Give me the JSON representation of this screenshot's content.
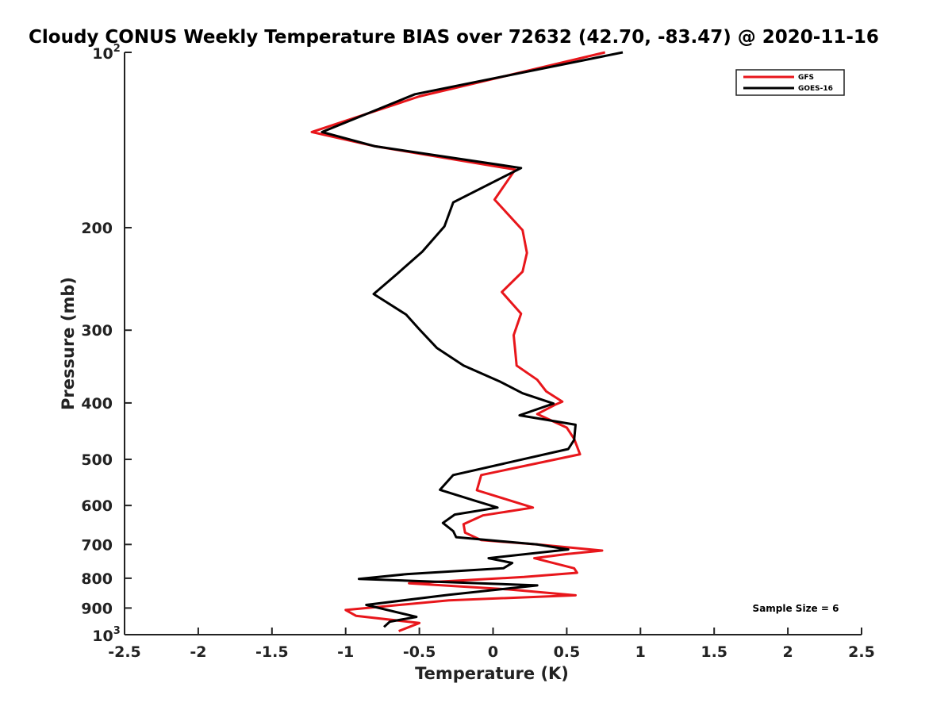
{
  "chart_data": {
    "type": "line",
    "title": "Cloudy CONUS Weekly Temperature BIAS over 72632 (42.70, -83.47) @ 2020-11-16",
    "xlabel": "Temperature (K)",
    "ylabel": "Pressure (mb)",
    "xlim": [
      -2.5,
      2.5
    ],
    "ylim": [
      100,
      1000
    ],
    "y_scale": "log",
    "y_reversed": true,
    "x_ticks": [
      "-2.5",
      "-2",
      "-1.5",
      "-1",
      "-0.5",
      "0",
      "0.5",
      "1",
      "1.5",
      "2",
      "2.5"
    ],
    "y_ticks": [
      {
        "value": 100,
        "base": "10",
        "exp": "2"
      },
      {
        "value": 200,
        "label": "200"
      },
      {
        "value": 300,
        "label": "300"
      },
      {
        "value": 400,
        "label": "400"
      },
      {
        "value": 500,
        "label": "500"
      },
      {
        "value": 600,
        "label": "600"
      },
      {
        "value": 700,
        "label": "700"
      },
      {
        "value": 800,
        "label": "800"
      },
      {
        "value": 900,
        "label": "900"
      },
      {
        "value": 1000,
        "base": "10",
        "exp": "3"
      }
    ],
    "legend_position": "top-right",
    "annotation": "Sample Size = 6",
    "series": [
      {
        "name": "GFS",
        "color": "#e8161b",
        "points": [
          [
            0.76,
            100
          ],
          [
            -0.5,
            119
          ],
          [
            -1.23,
            137
          ],
          [
            -0.8,
            145
          ],
          [
            0.15,
            159
          ],
          [
            0.01,
            179
          ],
          [
            0.2,
            202
          ],
          [
            0.23,
            221
          ],
          [
            0.2,
            238
          ],
          [
            0.06,
            258
          ],
          [
            0.19,
            281
          ],
          [
            0.14,
            306
          ],
          [
            0.15,
            325
          ],
          [
            0.16,
            345
          ],
          [
            0.3,
            365
          ],
          [
            0.36,
            382
          ],
          [
            0.47,
            398
          ],
          [
            0.42,
            403
          ],
          [
            0.3,
            418
          ],
          [
            0.5,
            441
          ],
          [
            0.55,
            461
          ],
          [
            0.59,
            490
          ],
          [
            -0.08,
            532
          ],
          [
            -0.11,
            565
          ],
          [
            0.14,
            591
          ],
          [
            0.27,
            605
          ],
          [
            -0.07,
            624
          ],
          [
            -0.2,
            646
          ],
          [
            -0.19,
            668
          ],
          [
            -0.08,
            688
          ],
          [
            0.3,
            700
          ],
          [
            0.74,
            717
          ],
          [
            0.5,
            727
          ],
          [
            0.28,
            739
          ],
          [
            0.55,
            769
          ],
          [
            0.57,
            783
          ],
          [
            0.21,
            796
          ],
          [
            -0.57,
            816
          ],
          [
            0.1,
            836
          ],
          [
            0.56,
            856
          ],
          [
            -0.3,
            873
          ],
          [
            -1.0,
            907
          ],
          [
            -0.93,
            928
          ],
          [
            -0.5,
            955
          ],
          [
            -0.64,
            986
          ]
        ]
      },
      {
        "name": "GOES-16",
        "color": "#000000",
        "points": [
          [
            0.88,
            100
          ],
          [
            -0.53,
            118
          ],
          [
            -1.16,
            137
          ],
          [
            -0.8,
            145
          ],
          [
            0.19,
            158
          ],
          [
            -0.27,
            181
          ],
          [
            -0.33,
            199
          ],
          [
            -0.48,
            220
          ],
          [
            -0.65,
            240
          ],
          [
            -0.81,
            260
          ],
          [
            -0.59,
            282
          ],
          [
            -0.5,
            299
          ],
          [
            -0.38,
            322
          ],
          [
            -0.2,
            345
          ],
          [
            0.05,
            368
          ],
          [
            0.2,
            385
          ],
          [
            0.41,
            401
          ],
          [
            0.18,
            420
          ],
          [
            0.56,
            436
          ],
          [
            0.55,
            463
          ],
          [
            0.51,
            480
          ],
          [
            -0.27,
            532
          ],
          [
            -0.36,
            564
          ],
          [
            -0.12,
            589
          ],
          [
            0.03,
            605
          ],
          [
            -0.26,
            622
          ],
          [
            -0.34,
            643
          ],
          [
            -0.27,
            664
          ],
          [
            -0.25,
            680
          ],
          [
            0.3,
            700
          ],
          [
            0.51,
            714
          ],
          [
            -0.03,
            739
          ],
          [
            0.13,
            753
          ],
          [
            0.07,
            769
          ],
          [
            -0.58,
            787
          ],
          [
            -0.91,
            802
          ],
          [
            0.3,
            823
          ],
          [
            -0.3,
            854
          ],
          [
            -0.86,
            889
          ],
          [
            -0.52,
            932
          ],
          [
            -0.7,
            950
          ],
          [
            -0.74,
            970
          ]
        ]
      }
    ]
  }
}
